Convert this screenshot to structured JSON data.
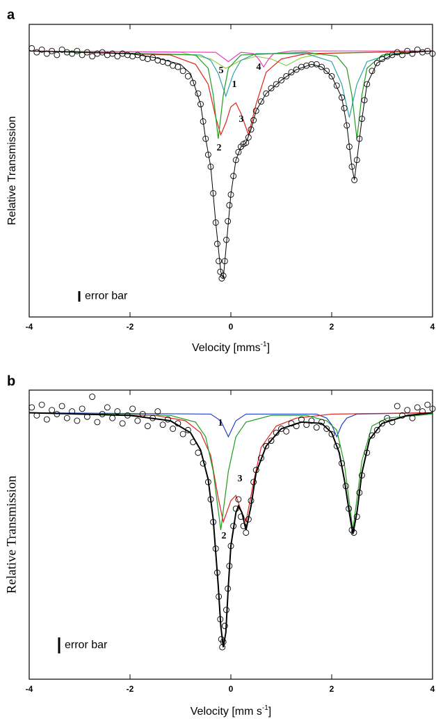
{
  "chart_data": [
    {
      "type": "scatter",
      "panel_label": "a",
      "y_label": "Relative Transmission",
      "x_label": [
        "Velocity [mms",
        "-1",
        "]"
      ],
      "xlim": [
        -4,
        4
      ],
      "xticks": [
        -4,
        -2,
        0,
        2,
        4
      ],
      "ylim": [
        0.8,
        1.02
      ],
      "annotations": [
        "5",
        "1",
        "4",
        "3",
        "2"
      ],
      "error_bar_label": "error bar",
      "points": {
        "x": [
          -3.95,
          -3.85,
          -3.75,
          -3.65,
          -3.55,
          -3.45,
          -3.35,
          -3.25,
          -3.15,
          -3.05,
          -2.95,
          -2.85,
          -2.75,
          -2.65,
          -2.55,
          -2.45,
          -2.35,
          -2.25,
          -2.15,
          -2.05,
          -1.95,
          -1.85,
          -1.75,
          -1.65,
          -1.55,
          -1.45,
          -1.35,
          -1.25,
          -1.15,
          -1.05,
          -0.95,
          -0.85,
          -0.75,
          -0.65,
          -0.6,
          -0.55,
          -0.5,
          -0.45,
          -0.4,
          -0.35,
          -0.3,
          -0.27,
          -0.24,
          -0.21,
          -0.18,
          -0.15,
          -0.12,
          -0.09,
          -0.06,
          -0.03,
          0.0,
          0.05,
          0.1,
          0.15,
          0.2,
          0.25,
          0.3,
          0.35,
          0.4,
          0.45,
          0.5,
          0.6,
          0.7,
          0.8,
          0.9,
          1.0,
          1.1,
          1.2,
          1.3,
          1.4,
          1.5,
          1.6,
          1.7,
          1.8,
          1.9,
          2.0,
          2.1,
          2.2,
          2.25,
          2.3,
          2.35,
          2.4,
          2.45,
          2.5,
          2.55,
          2.6,
          2.65,
          2.7,
          2.8,
          2.9,
          3.0,
          3.1,
          3.2,
          3.3,
          3.4,
          3.5,
          3.6,
          3.7,
          3.8,
          3.9,
          4.0
        ],
        "values": [
          1.002,
          0.999,
          1.001,
          0.998,
          1.0,
          0.997,
          1.001,
          0.999,
          0.998,
          1.0,
          0.997,
          0.999,
          0.996,
          0.998,
          0.999,
          0.997,
          0.998,
          0.996,
          0.998,
          0.997,
          0.996,
          0.997,
          0.995,
          0.994,
          0.995,
          0.993,
          0.992,
          0.991,
          0.989,
          0.988,
          0.985,
          0.981,
          0.976,
          0.968,
          0.96,
          0.947,
          0.934,
          0.922,
          0.913,
          0.893,
          0.871,
          0.855,
          0.842,
          0.834,
          0.829,
          0.831,
          0.842,
          0.858,
          0.872,
          0.884,
          0.892,
          0.906,
          0.918,
          0.924,
          0.928,
          0.93,
          0.931,
          0.935,
          0.941,
          0.948,
          0.955,
          0.962,
          0.968,
          0.972,
          0.975,
          0.978,
          0.981,
          0.984,
          0.986,
          0.988,
          0.989,
          0.99,
          0.99,
          0.988,
          0.985,
          0.981,
          0.974,
          0.965,
          0.957,
          0.944,
          0.928,
          0.913,
          0.903,
          0.918,
          0.934,
          0.949,
          0.963,
          0.975,
          0.985,
          0.991,
          0.994,
          0.996,
          0.997,
          0.999,
          0.997,
          1.0,
          0.998,
          1.001,
          0.999,
          1.0,
          0.998
        ]
      },
      "fits": [
        {
          "color": "#8ed04a",
          "x": [
            -4,
            -1,
            -0.4,
            -0.1,
            0.2,
            0.5,
            0.8,
            1.1,
            1.4,
            1.8,
            4
          ],
          "values": [
            1.0,
            0.999,
            0.994,
            0.987,
            0.993,
            0.996,
            0.994,
            0.989,
            0.995,
            0.998,
            1.0
          ]
        },
        {
          "color": "#e040c0",
          "x": [
            -4,
            -0.3,
            -0.05,
            0.2,
            0.45,
            0.55,
            0.65,
            0.75,
            0.85,
            1.2,
            4
          ],
          "values": [
            1.0,
            0.999,
            0.992,
            0.999,
            0.998,
            0.994,
            0.988,
            0.994,
            0.998,
            1.0,
            1.0
          ]
        },
        {
          "color": "#2aa3a8",
          "x": [
            -4,
            -0.6,
            -0.4,
            -0.25,
            -0.1,
            0.05,
            0.2,
            0.5,
            1.5,
            2.0,
            2.2,
            2.35,
            2.5,
            2.7,
            3.2,
            4
          ],
          "values": [
            1.0,
            0.997,
            0.993,
            0.983,
            0.966,
            0.983,
            0.993,
            0.998,
            0.998,
            0.992,
            0.975,
            0.95,
            0.975,
            0.992,
            0.998,
            1.0
          ]
        },
        {
          "color": "#e0201c",
          "x": [
            -4,
            -1.2,
            -0.7,
            -0.45,
            -0.3,
            -0.2,
            -0.1,
            0.0,
            0.1,
            0.2,
            0.35,
            0.5,
            0.7,
            1.0,
            1.5,
            4
          ],
          "values": [
            1.0,
            0.997,
            0.99,
            0.975,
            0.95,
            0.937,
            0.946,
            0.958,
            0.961,
            0.953,
            0.937,
            0.96,
            0.984,
            0.994,
            0.998,
            1.0
          ]
        },
        {
          "color": "#1e9c1e",
          "x": [
            -4,
            -0.7,
            -0.45,
            -0.35,
            -0.25,
            -0.15,
            -0.05,
            0.2,
            1.5,
            2.1,
            2.3,
            2.4,
            2.5,
            2.6,
            2.7,
            3.0,
            4
          ],
          "values": [
            1.0,
            0.997,
            0.987,
            0.967,
            0.934,
            0.967,
            0.987,
            0.997,
            0.999,
            0.996,
            0.987,
            0.967,
            0.934,
            0.967,
            0.987,
            0.997,
            1.0
          ]
        },
        {
          "color": "#000000",
          "x": [
            -4,
            -3,
            -2,
            -1.5,
            -1,
            -0.8,
            -0.6,
            -0.5,
            -0.4,
            -0.3,
            -0.2,
            -0.15,
            -0.1,
            0.0,
            0.1,
            0.2,
            0.3,
            0.4,
            0.5,
            0.7,
            1.0,
            1.3,
            1.6,
            1.8,
            2.0,
            2.2,
            2.3,
            2.4,
            2.45,
            2.5,
            2.6,
            2.7,
            2.9,
            3.2,
            3.6,
            4
          ],
          "values": [
            1.0,
            0.999,
            0.998,
            0.995,
            0.99,
            0.983,
            0.96,
            0.934,
            0.913,
            0.871,
            0.834,
            0.829,
            0.85,
            0.892,
            0.918,
            0.928,
            0.931,
            0.941,
            0.955,
            0.968,
            0.978,
            0.986,
            0.99,
            0.988,
            0.981,
            0.965,
            0.944,
            0.913,
            0.903,
            0.918,
            0.949,
            0.975,
            0.991,
            0.997,
            0.999,
            1.0
          ]
        }
      ]
    },
    {
      "type": "scatter",
      "panel_label": "b",
      "y_label": "Relative Transmission",
      "x_label": [
        "Velocity [mm s",
        "-1",
        "]"
      ],
      "xlim": [
        -4,
        4
      ],
      "xticks": [
        -4,
        -2,
        0,
        2,
        4
      ],
      "ylim": [
        0.8,
        1.017
      ],
      "annotations": [
        "1",
        "3",
        "2"
      ],
      "error_bar_label": "error bar",
      "points": {
        "x": [
          -3.95,
          -3.85,
          -3.75,
          -3.65,
          -3.55,
          -3.45,
          -3.35,
          -3.25,
          -3.15,
          -3.05,
          -2.95,
          -2.85,
          -2.75,
          -2.65,
          -2.55,
          -2.45,
          -2.35,
          -2.25,
          -2.15,
          -2.05,
          -1.95,
          -1.85,
          -1.75,
          -1.65,
          -1.55,
          -1.45,
          -1.35,
          -1.25,
          -1.15,
          -1.05,
          -0.95,
          -0.85,
          -0.75,
          -0.65,
          -0.55,
          -0.45,
          -0.4,
          -0.35,
          -0.3,
          -0.27,
          -0.24,
          -0.21,
          -0.19,
          -0.17,
          -0.15,
          -0.12,
          -0.09,
          -0.06,
          -0.03,
          0.0,
          0.05,
          0.1,
          0.15,
          0.2,
          0.25,
          0.3,
          0.35,
          0.4,
          0.45,
          0.5,
          0.6,
          0.7,
          0.8,
          0.9,
          1.0,
          1.1,
          1.2,
          1.3,
          1.4,
          1.5,
          1.6,
          1.7,
          1.8,
          1.9,
          2.0,
          2.1,
          2.2,
          2.28,
          2.34,
          2.4,
          2.44,
          2.5,
          2.55,
          2.6,
          2.7,
          2.8,
          2.9,
          3.0,
          3.1,
          3.2,
          3.3,
          3.4,
          3.5,
          3.6,
          3.7,
          3.8,
          3.9,
          4.0
        ],
        "values": [
          1.004,
          0.998,
          1.006,
          0.995,
          1.002,
          0.999,
          1.005,
          0.996,
          1.001,
          0.994,
          1.003,
          0.997,
          1.012,
          0.993,
          0.999,
          1.004,
          0.996,
          1.001,
          0.992,
          0.998,
          1.003,
          0.994,
          0.999,
          0.99,
          0.996,
          1.001,
          0.991,
          0.995,
          0.988,
          0.992,
          0.984,
          0.987,
          0.978,
          0.97,
          0.962,
          0.948,
          0.935,
          0.918,
          0.898,
          0.88,
          0.862,
          0.845,
          0.83,
          0.824,
          0.828,
          0.84,
          0.852,
          0.868,
          0.885,
          0.9,
          0.915,
          0.928,
          0.935,
          0.922,
          0.915,
          0.91,
          0.92,
          0.934,
          0.948,
          0.957,
          0.966,
          0.975,
          0.979,
          0.985,
          0.988,
          0.986,
          0.992,
          0.99,
          0.995,
          0.991,
          0.994,
          0.989,
          0.993,
          0.988,
          0.984,
          0.975,
          0.962,
          0.945,
          0.928,
          0.912,
          0.91,
          0.922,
          0.94,
          0.953,
          0.97,
          0.983,
          0.987,
          0.992,
          0.996,
          0.993,
          1.005,
          0.998,
          1.002,
          0.996,
          1.004,
          1.001,
          1.006,
          1.003
        ]
      },
      "fits": [
        {
          "color": "#2040d0",
          "x": [
            -4,
            -0.4,
            -0.2,
            -0.1,
            -0.05,
            0,
            0.1,
            0.3,
            1.7,
            1.9,
            2.0,
            2.1,
            2.2,
            2.3,
            2.5,
            4
          ],
          "values": [
            1.0,
            0.999,
            0.994,
            0.986,
            0.982,
            0.986,
            0.994,
            0.999,
            0.999,
            0.996,
            0.991,
            0.982,
            0.991,
            0.996,
            0.999,
            1.0
          ]
        },
        {
          "color": "#e0201c",
          "x": [
            -4,
            -1.5,
            -0.9,
            -0.6,
            -0.4,
            -0.25,
            -0.15,
            0.0,
            0.1,
            0.2,
            0.3,
            0.45,
            0.6,
            0.9,
            1.3,
            2.0,
            4
          ],
          "values": [
            1.0,
            0.998,
            0.994,
            0.985,
            0.968,
            0.936,
            0.918,
            0.934,
            0.938,
            0.927,
            0.918,
            0.948,
            0.974,
            0.99,
            0.996,
            0.999,
            1.0
          ]
        },
        {
          "color": "#1e9c1e",
          "x": [
            -4,
            -1.2,
            -0.7,
            -0.5,
            -0.35,
            -0.2,
            -0.05,
            0.1,
            0.3,
            0.8,
            1.5,
            1.9,
            2.1,
            2.25,
            2.42,
            2.6,
            2.8,
            3.1,
            4
          ],
          "values": [
            1.0,
            0.998,
            0.993,
            0.982,
            0.956,
            0.912,
            0.956,
            0.982,
            0.993,
            0.998,
            0.998,
            0.994,
            0.987,
            0.962,
            0.912,
            0.964,
            0.99,
            0.996,
            0.999
          ]
        },
        {
          "color": "#000000",
          "x": [
            -4,
            -2,
            -1.2,
            -0.8,
            -0.6,
            -0.45,
            -0.35,
            -0.25,
            -0.2,
            -0.15,
            -0.1,
            -0.05,
            0.0,
            0.1,
            0.15,
            0.22,
            0.3,
            0.4,
            0.5,
            0.7,
            1.0,
            1.4,
            1.8,
            2.0,
            2.15,
            2.25,
            2.35,
            2.42,
            2.5,
            2.6,
            2.75,
            3.0,
            3.5,
            4.0
          ],
          "values": [
            1.0,
            0.998,
            0.994,
            0.985,
            0.972,
            0.95,
            0.92,
            0.87,
            0.84,
            0.824,
            0.835,
            0.87,
            0.9,
            0.925,
            0.93,
            0.925,
            0.912,
            0.93,
            0.955,
            0.975,
            0.988,
            0.993,
            0.992,
            0.985,
            0.97,
            0.95,
            0.925,
            0.909,
            0.925,
            0.955,
            0.98,
            0.992,
            0.998,
            1.0
          ]
        }
      ]
    }
  ]
}
